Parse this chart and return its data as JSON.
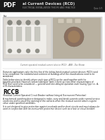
{
  "full_title": "al Current Devices (RCD)",
  "subtitle_line": "ELECTRICAL INSTALLATION THEORY AND PRACTICE",
  "page_label": "Quiz 1/1",
  "pdf_icon_bg": "#1a1a1a",
  "pdf_icon_text": "PDF",
  "pdf_icon_color": "#ffffff",
  "page_bg": "#f5f5f5",
  "content_bg": "#ffffff",
  "image_caption": "Current operated residual current device (RCD) - ABB - Dor Shean",
  "body_text_color": "#222222",
  "rccb_header_color": "#111111",
  "caption_color": "#666666",
  "link_color": "#1a6699",
  "header_line_color": "#999999",
  "header_bg": "#1a1a1a",
  "header_title_color": "#dddddd",
  "header_subtitle_color": "#999999",
  "image_bg_left": "#e0ddd8",
  "image_bg_right": "#c8c0b0",
  "image_outer_bg": "#d8d8d8"
}
